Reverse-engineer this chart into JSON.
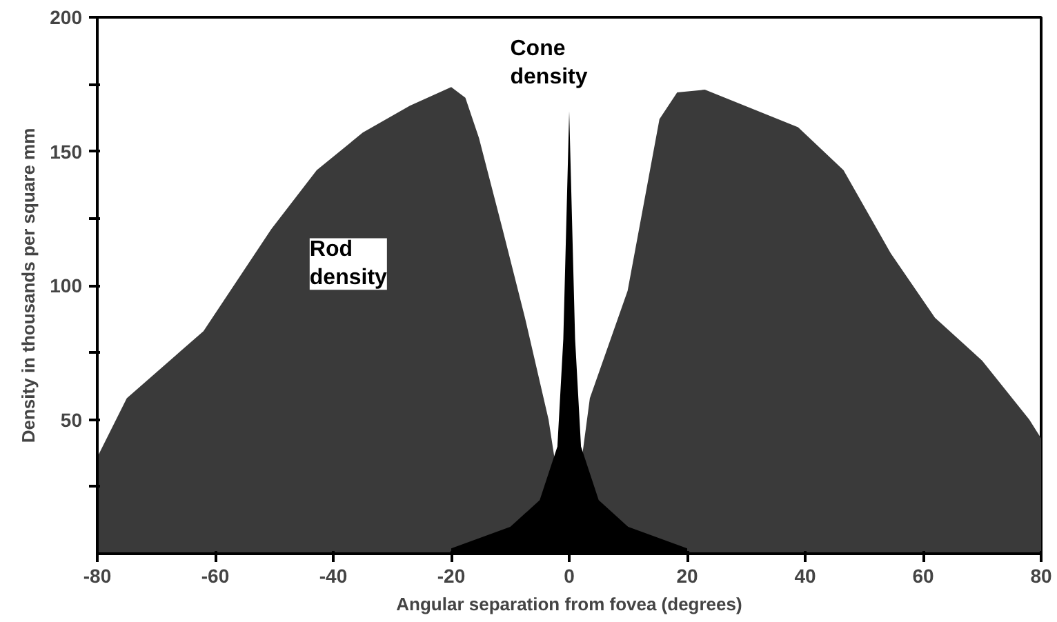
{
  "chart_data": {
    "type": "area",
    "xlabel": "Angular separation from fovea (degrees)",
    "ylabel": "Density in thousands per square mm",
    "xlim": [
      -80,
      80
    ],
    "ylim": [
      0,
      200
    ],
    "xticks": [
      -80,
      -60,
      -40,
      -20,
      0,
      20,
      40,
      60,
      80
    ],
    "yticks": [
      {
        "value": 25,
        "label": null
      },
      50,
      {
        "value": 75,
        "label": null
      },
      100,
      {
        "value": 125,
        "label": null
      },
      150,
      {
        "value": 175,
        "label": null
      },
      200
    ],
    "grid": false,
    "series": [
      {
        "name": "Rod density",
        "color": "#3a3a3a",
        "x": [
          -80,
          -75,
          -62,
          -50.5,
          -42.8,
          -35,
          -27,
          -20,
          -17.6,
          -15.3,
          -11.3,
          -7.5,
          -3.5,
          0,
          3.5,
          9.9,
          15.3,
          18.3,
          23,
          38.8,
          46.5,
          54.5,
          62,
          70,
          78,
          80
        ],
        "values": [
          36,
          58,
          83,
          121,
          143,
          157,
          167,
          174,
          170,
          155,
          121,
          88,
          50,
          0,
          58,
          98,
          162,
          172,
          173,
          159,
          143,
          112,
          88,
          72,
          50,
          43
        ]
      },
      {
        "name": "Cone density",
        "color": "#000000",
        "x": [
          -20,
          -10,
          -5,
          -2,
          -1,
          0,
          1,
          2,
          5,
          10,
          20
        ],
        "values": [
          2,
          10,
          20,
          40,
          80,
          165,
          80,
          40,
          20,
          10,
          2
        ]
      }
    ]
  }
}
